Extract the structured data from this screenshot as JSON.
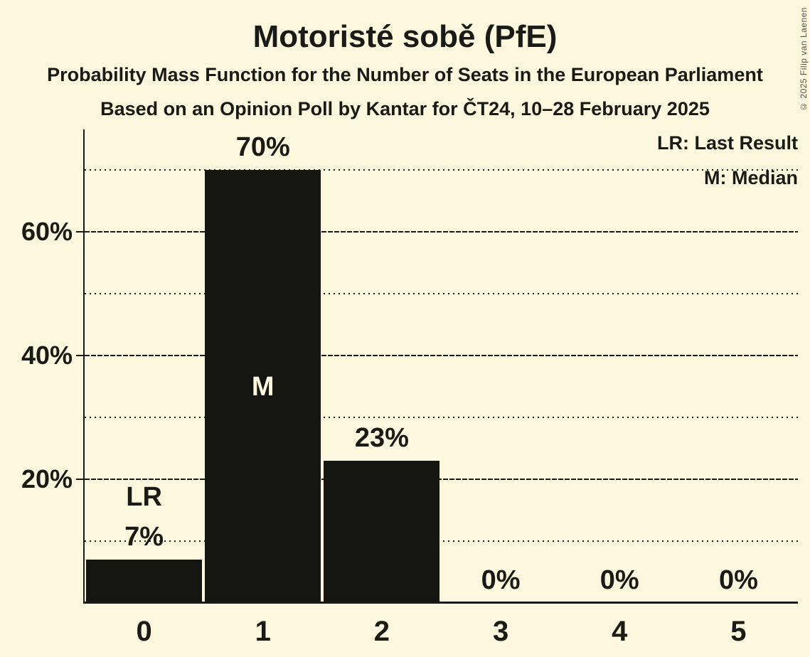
{
  "header": {
    "title": "Motoristé sobě (PfE)",
    "subtitle1": "Probability Mass Function for the Number of Seats in the European Parliament",
    "subtitle2": "Based on an Opinion Poll by Kantar for ČT24, 10–28 February 2025"
  },
  "copyright": "© 2025 Filip van Laenen",
  "colors": {
    "background": "#fcf8de",
    "bar": "#141411",
    "text": "#1b1b15",
    "grid": "#1b1b15",
    "copyright_text": "#55554a"
  },
  "chart_data": {
    "type": "bar",
    "title": "Motoristé sobě (PfE)",
    "xlabel": "",
    "ylabel": "",
    "categories": [
      "0",
      "1",
      "2",
      "3",
      "4",
      "5"
    ],
    "values": [
      7,
      70,
      23,
      0,
      0,
      0
    ],
    "value_labels": [
      "7%",
      "70%",
      "23%",
      "0%",
      "0%",
      "0%"
    ],
    "annotations": [
      {
        "index": 0,
        "label": "LR",
        "meaning": "Last Result",
        "position": "above-value"
      },
      {
        "index": 1,
        "label": "M",
        "meaning": "Median",
        "position": "inside-bar"
      }
    ],
    "legend": [
      "LR: Last Result",
      "M: Median"
    ],
    "y_axis": {
      "tick_values": [
        20,
        40,
        60
      ],
      "tick_labels": [
        "20%",
        "40%",
        "60%"
      ],
      "solid_gridlines": [
        20,
        40,
        60
      ],
      "dotted_gridlines": [
        10,
        30,
        50,
        70
      ],
      "ylim": [
        0,
        76.6
      ]
    },
    "grid": true,
    "legend_position": "top-right"
  }
}
